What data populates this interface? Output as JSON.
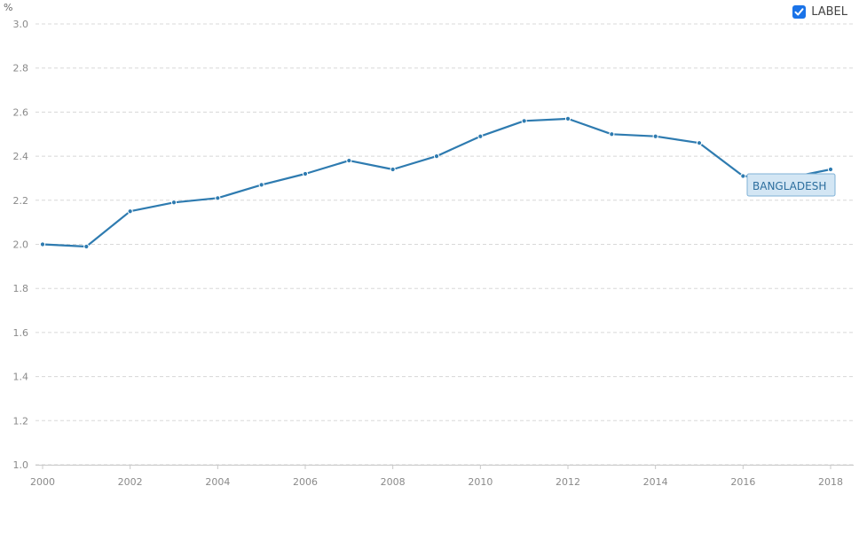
{
  "legend": {
    "label": "LABEL",
    "checked": true,
    "accent_color": "#1a73e8"
  },
  "chart_data": {
    "type": "line",
    "unit": "%",
    "x": [
      2000,
      2001,
      2002,
      2003,
      2004,
      2005,
      2006,
      2007,
      2008,
      2009,
      2010,
      2011,
      2012,
      2013,
      2014,
      2015,
      2016,
      2017,
      2018
    ],
    "series": [
      {
        "name": "BANGLADESH",
        "color": "#2e7bb0",
        "values": [
          2.0,
          1.99,
          2.15,
          2.19,
          2.21,
          2.27,
          2.32,
          2.38,
          2.34,
          2.4,
          2.49,
          2.56,
          2.57,
          2.5,
          2.49,
          2.46,
          2.31,
          2.3,
          2.34
        ]
      }
    ],
    "ylim": [
      1.0,
      3.0
    ],
    "yticks": [
      "1.0",
      "1.2",
      "1.4",
      "1.6",
      "1.8",
      "2.0",
      "2.2",
      "2.4",
      "2.6",
      "2.8",
      "3.0"
    ],
    "xticks": [
      "2000",
      "2002",
      "2004",
      "2006",
      "2008",
      "2010",
      "2012",
      "2014",
      "2016",
      "2018"
    ],
    "grid": true,
    "gridline_color": "#d8d8d8"
  }
}
